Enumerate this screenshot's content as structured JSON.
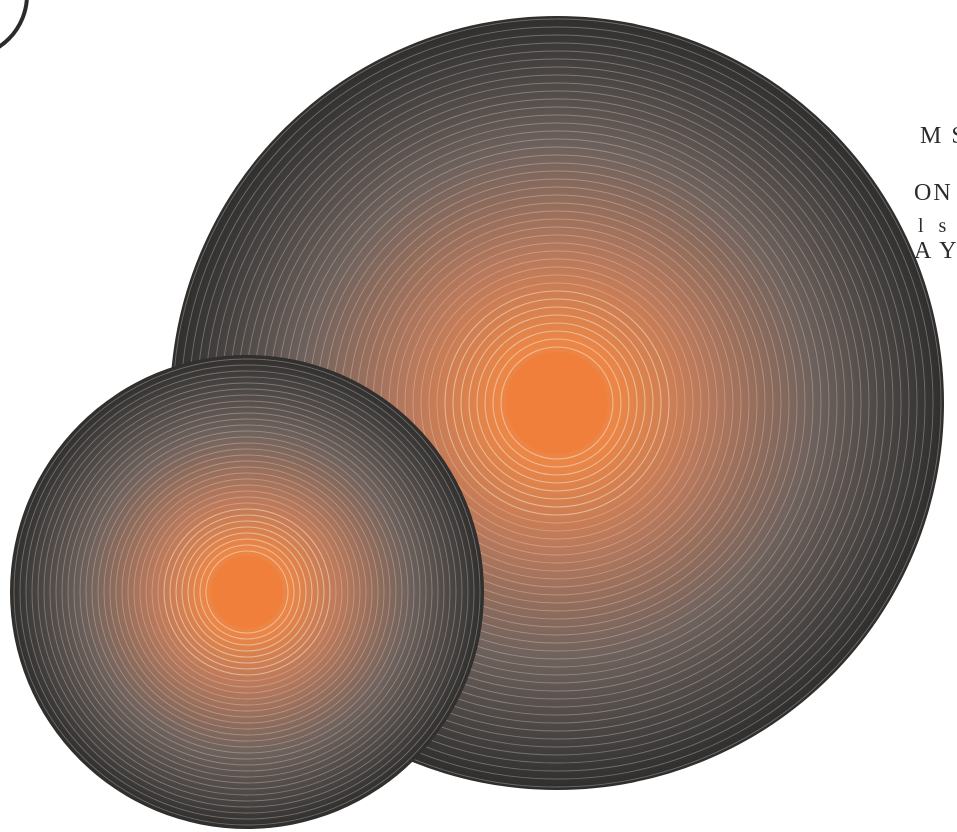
{
  "text_lines": [
    "M S",
    "ON",
    "l s t",
    "A Y"
  ],
  "colors": {
    "background": "#ffffff",
    "dark_rim": "#2f2e2d",
    "orange_core": "#f07f3c",
    "ring_line": "#f2e5d7"
  },
  "graphics": {
    "large_disc": {
      "icon": "concentric-gradient-circle"
    },
    "small_disc": {
      "icon": "concentric-gradient-circle"
    },
    "top_left_ring": {
      "icon": "outlined-circle"
    }
  }
}
